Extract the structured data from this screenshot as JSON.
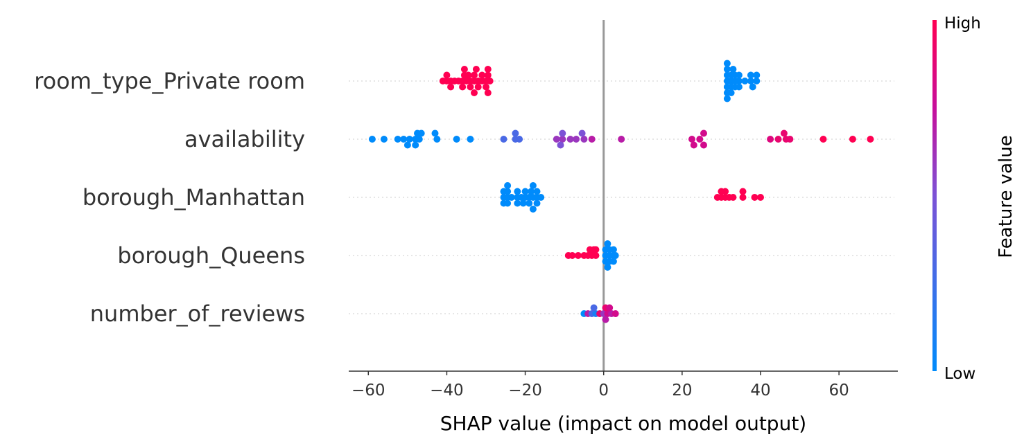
{
  "chart_data": {
    "type": "scatter",
    "title": "",
    "xlabel": "SHAP value (impact on model output)",
    "ylabel": "",
    "xlim": [
      -65,
      75
    ],
    "xticks": [
      -60,
      -40,
      -20,
      0,
      20,
      40,
      60
    ],
    "xtick_labels": [
      "−60",
      "−40",
      "−20",
      "0",
      "20",
      "40",
      "60"
    ],
    "grid": false,
    "colorbar": {
      "title": "Feature value",
      "high_label": "High",
      "low_label": "Low",
      "high_color": "#ff0d57",
      "low_color": "#1e88e5"
    },
    "colors": {
      "low": "#008bfb",
      "mid_low": "#7c52d6",
      "mid_high": "#c70e9b",
      "high": "#ff0052",
      "zero_line": "#999999",
      "row_guide": "#cccccc"
    },
    "features": [
      {
        "name": "room_type_Private room",
        "points": [
          {
            "x": -41,
            "y": 0,
            "v": 1
          },
          {
            "x": -40,
            "y": 0,
            "v": 1
          },
          {
            "x": -39,
            "y": 0,
            "v": 1
          },
          {
            "x": -38,
            "y": 0,
            "v": 1
          },
          {
            "x": -37,
            "y": 0,
            "v": 1
          },
          {
            "x": -36,
            "y": 0,
            "v": 1
          },
          {
            "x": -35,
            "y": 0,
            "v": 1
          },
          {
            "x": -34,
            "y": 0,
            "v": 1
          },
          {
            "x": -33,
            "y": 0,
            "v": 1
          },
          {
            "x": -32,
            "y": 0,
            "v": 1
          },
          {
            "x": -31,
            "y": 0,
            "v": 1
          },
          {
            "x": -30,
            "y": 0,
            "v": 1
          },
          {
            "x": -29,
            "y": 0,
            "v": 1
          },
          {
            "x": -40,
            "y": 1,
            "v": 1
          },
          {
            "x": -35.5,
            "y": 1,
            "v": 1
          },
          {
            "x": -34.5,
            "y": 1,
            "v": 1
          },
          {
            "x": -33,
            "y": 1,
            "v": 1
          },
          {
            "x": -31,
            "y": 1,
            "v": 1
          },
          {
            "x": -29.5,
            "y": 1,
            "v": 1
          },
          {
            "x": -39,
            "y": -1,
            "v": 1
          },
          {
            "x": -36,
            "y": -1,
            "v": 1
          },
          {
            "x": -34,
            "y": -1,
            "v": 1
          },
          {
            "x": -32,
            "y": -1,
            "v": 1
          },
          {
            "x": -30,
            "y": -1,
            "v": 1
          },
          {
            "x": -35.5,
            "y": 2,
            "v": 1
          },
          {
            "x": -32.5,
            "y": 2,
            "v": 1
          },
          {
            "x": -29.5,
            "y": 2,
            "v": 1
          },
          {
            "x": -33,
            "y": -2,
            "v": 1
          },
          {
            "x": -29.5,
            "y": -2,
            "v": 1
          },
          {
            "x": 31.5,
            "y": 0,
            "v": 0
          },
          {
            "x": 32.5,
            "y": 0,
            "v": 0
          },
          {
            "x": 33.5,
            "y": 0,
            "v": 0
          },
          {
            "x": 34.5,
            "y": 0,
            "v": 0
          },
          {
            "x": 36,
            "y": 0,
            "v": 0
          },
          {
            "x": 37.5,
            "y": 0,
            "v": 0
          },
          {
            "x": 39,
            "y": 0,
            "v": 0
          },
          {
            "x": 31.5,
            "y": 1,
            "v": 0
          },
          {
            "x": 32.5,
            "y": 1,
            "v": 0
          },
          {
            "x": 33.5,
            "y": 1,
            "v": 0
          },
          {
            "x": 34.5,
            "y": 1,
            "v": 0
          },
          {
            "x": 37.5,
            "y": 1,
            "v": 0
          },
          {
            "x": 39,
            "y": 1,
            "v": 0
          },
          {
            "x": 31.5,
            "y": -1,
            "v": 0
          },
          {
            "x": 32.5,
            "y": -1,
            "v": 0
          },
          {
            "x": 33.5,
            "y": -1,
            "v": 0
          },
          {
            "x": 34.5,
            "y": -1,
            "v": 0
          },
          {
            "x": 38,
            "y": -1,
            "v": 0
          },
          {
            "x": 31.5,
            "y": 2,
            "v": 0
          },
          {
            "x": 33,
            "y": 2,
            "v": 0
          },
          {
            "x": 31.5,
            "y": -2,
            "v": 0
          },
          {
            "x": 32.5,
            "y": -2,
            "v": 0
          },
          {
            "x": 31.5,
            "y": 3,
            "v": 0
          },
          {
            "x": 31.5,
            "y": -3,
            "v": 0
          }
        ]
      },
      {
        "name": "availability",
        "points": [
          {
            "x": -59,
            "y": 0,
            "v": 0
          },
          {
            "x": -56,
            "y": 0,
            "v": 0
          },
          {
            "x": -52.5,
            "y": 0,
            "v": 0
          },
          {
            "x": -51,
            "y": 0,
            "v": 0
          },
          {
            "x": -49.5,
            "y": 0,
            "v": 0
          },
          {
            "x": -48,
            "y": 0,
            "v": 0
          },
          {
            "x": -47,
            "y": 0,
            "v": 0
          },
          {
            "x": -42.5,
            "y": 0,
            "v": 0
          },
          {
            "x": -37.5,
            "y": 0,
            "v": 0
          },
          {
            "x": -34,
            "y": 0,
            "v": 0
          },
          {
            "x": -47.5,
            "y": 1,
            "v": 0
          },
          {
            "x": -46.5,
            "y": 1,
            "v": 0
          },
          {
            "x": -43,
            "y": 1,
            "v": 0
          },
          {
            "x": -50,
            "y": -1,
            "v": 0
          },
          {
            "x": -48,
            "y": -1,
            "v": 0
          },
          {
            "x": -25.5,
            "y": 0,
            "v": 0.3
          },
          {
            "x": -22.5,
            "y": 0,
            "v": 0.3
          },
          {
            "x": -21.5,
            "y": 0,
            "v": 0.3
          },
          {
            "x": -22.5,
            "y": 1,
            "v": 0.3
          },
          {
            "x": -12,
            "y": 0,
            "v": 0.6
          },
          {
            "x": -10.5,
            "y": 0,
            "v": 0.6
          },
          {
            "x": -8.5,
            "y": 0,
            "v": 0.6
          },
          {
            "x": -7,
            "y": 0,
            "v": 0.6
          },
          {
            "x": -5,
            "y": 0,
            "v": 0.6
          },
          {
            "x": -3,
            "y": 0,
            "v": 0.7
          },
          {
            "x": -11,
            "y": -1,
            "v": 0.5
          },
          {
            "x": -10.5,
            "y": 1,
            "v": 0.5
          },
          {
            "x": -5.5,
            "y": 1,
            "v": 0.5
          },
          {
            "x": 4.5,
            "y": 0,
            "v": 0.7
          },
          {
            "x": 22.5,
            "y": 0,
            "v": 0.8
          },
          {
            "x": 24.5,
            "y": 0,
            "v": 0.8
          },
          {
            "x": 23,
            "y": -1,
            "v": 0.8
          },
          {
            "x": 25.5,
            "y": 1,
            "v": 0.8
          },
          {
            "x": 25.5,
            "y": -1,
            "v": 0.8
          },
          {
            "x": 42.5,
            "y": 0,
            "v": 0.85
          },
          {
            "x": 44.5,
            "y": 0,
            "v": 0.9
          },
          {
            "x": 46.5,
            "y": 0,
            "v": 0.9
          },
          {
            "x": 47.5,
            "y": 0,
            "v": 0.9
          },
          {
            "x": 46,
            "y": 1,
            "v": 0.9
          },
          {
            "x": 56,
            "y": 0,
            "v": 1
          },
          {
            "x": 63.5,
            "y": 0,
            "v": 1
          },
          {
            "x": 68,
            "y": 0,
            "v": 1
          }
        ]
      },
      {
        "name": "borough_Manhattan",
        "points": [
          {
            "x": -25.5,
            "y": 0,
            "v": 0
          },
          {
            "x": -24.5,
            "y": 0,
            "v": 0
          },
          {
            "x": -23.5,
            "y": 0,
            "v": 0
          },
          {
            "x": -22,
            "y": 0,
            "v": 0
          },
          {
            "x": -21,
            "y": 0,
            "v": 0
          },
          {
            "x": -20,
            "y": 0,
            "v": 0
          },
          {
            "x": -19,
            "y": 0,
            "v": 0
          },
          {
            "x": -18,
            "y": 0,
            "v": 0
          },
          {
            "x": -17,
            "y": 0,
            "v": 0
          },
          {
            "x": -16,
            "y": 0,
            "v": 0
          },
          {
            "x": -25.5,
            "y": 1,
            "v": 0
          },
          {
            "x": -24.5,
            "y": 1,
            "v": 0
          },
          {
            "x": -22,
            "y": 1,
            "v": 0
          },
          {
            "x": -20,
            "y": 1,
            "v": 0
          },
          {
            "x": -18.5,
            "y": 1,
            "v": 0
          },
          {
            "x": -17,
            "y": 1,
            "v": 0
          },
          {
            "x": -25.5,
            "y": -1,
            "v": 0
          },
          {
            "x": -24.5,
            "y": -1,
            "v": 0
          },
          {
            "x": -22,
            "y": -1,
            "v": 0
          },
          {
            "x": -20.5,
            "y": -1,
            "v": 0
          },
          {
            "x": -19,
            "y": -1,
            "v": 0
          },
          {
            "x": -17,
            "y": -1,
            "v": 0
          },
          {
            "x": -24.5,
            "y": 2,
            "v": 0
          },
          {
            "x": -18,
            "y": 2,
            "v": 0
          },
          {
            "x": -18,
            "y": -2,
            "v": 0
          },
          {
            "x": 29,
            "y": 0,
            "v": 1
          },
          {
            "x": 30,
            "y": 0,
            "v": 1
          },
          {
            "x": 31,
            "y": 0,
            "v": 1
          },
          {
            "x": 32,
            "y": 0,
            "v": 1
          },
          {
            "x": 33,
            "y": 0,
            "v": 1
          },
          {
            "x": 35.5,
            "y": 0,
            "v": 1
          },
          {
            "x": 38.5,
            "y": 0,
            "v": 1
          },
          {
            "x": 40,
            "y": 0,
            "v": 1
          },
          {
            "x": 30,
            "y": 1,
            "v": 1
          },
          {
            "x": 31,
            "y": 1,
            "v": 1
          },
          {
            "x": 35.5,
            "y": 1,
            "v": 1
          }
        ]
      },
      {
        "name": "borough_Queens",
        "points": [
          {
            "x": -9,
            "y": 0,
            "v": 1
          },
          {
            "x": -8,
            "y": 0,
            "v": 1
          },
          {
            "x": -6.5,
            "y": 0,
            "v": 1
          },
          {
            "x": -5,
            "y": 0,
            "v": 1
          },
          {
            "x": -4,
            "y": 0,
            "v": 1
          },
          {
            "x": -3,
            "y": 0,
            "v": 1
          },
          {
            "x": -2,
            "y": 0,
            "v": 1
          },
          {
            "x": -3.5,
            "y": 1,
            "v": 1
          },
          {
            "x": -2.5,
            "y": 1,
            "v": 1
          },
          {
            "x": -2,
            "y": 1,
            "v": 1
          },
          {
            "x": 0.5,
            "y": 0,
            "v": 0
          },
          {
            "x": 1.5,
            "y": 0,
            "v": 0
          },
          {
            "x": 2.5,
            "y": 0,
            "v": 0
          },
          {
            "x": 3,
            "y": 0,
            "v": 0
          },
          {
            "x": 0.5,
            "y": 1,
            "v": 0
          },
          {
            "x": 1.5,
            "y": 1,
            "v": 0
          },
          {
            "x": 2.5,
            "y": 1,
            "v": 0
          },
          {
            "x": 0.5,
            "y": -1,
            "v": 0
          },
          {
            "x": 1.5,
            "y": -1,
            "v": 0
          },
          {
            "x": 2.5,
            "y": -1,
            "v": 0
          },
          {
            "x": 1,
            "y": 2,
            "v": 0
          },
          {
            "x": 1,
            "y": -2,
            "v": 0
          }
        ]
      },
      {
        "name": "number_of_reviews",
        "points": [
          {
            "x": -5,
            "y": 0,
            "v": 0
          },
          {
            "x": -4,
            "y": 0,
            "v": 0.7
          },
          {
            "x": -3,
            "y": 0,
            "v": 0.3
          },
          {
            "x": -2,
            "y": 0,
            "v": 0.1
          },
          {
            "x": -1,
            "y": 0,
            "v": 0.9
          },
          {
            "x": 0,
            "y": 0,
            "v": 0.6
          },
          {
            "x": 1,
            "y": 0,
            "v": 0.8
          },
          {
            "x": 2,
            "y": 0,
            "v": 0.7
          },
          {
            "x": 3,
            "y": 0,
            "v": 0.8
          },
          {
            "x": -2.5,
            "y": 1,
            "v": 0.3
          },
          {
            "x": 0.5,
            "y": 1,
            "v": 0.9
          },
          {
            "x": 1.5,
            "y": 1,
            "v": 0.8
          },
          {
            "x": 0.5,
            "y": -1,
            "v": 0.7
          }
        ]
      }
    ]
  }
}
